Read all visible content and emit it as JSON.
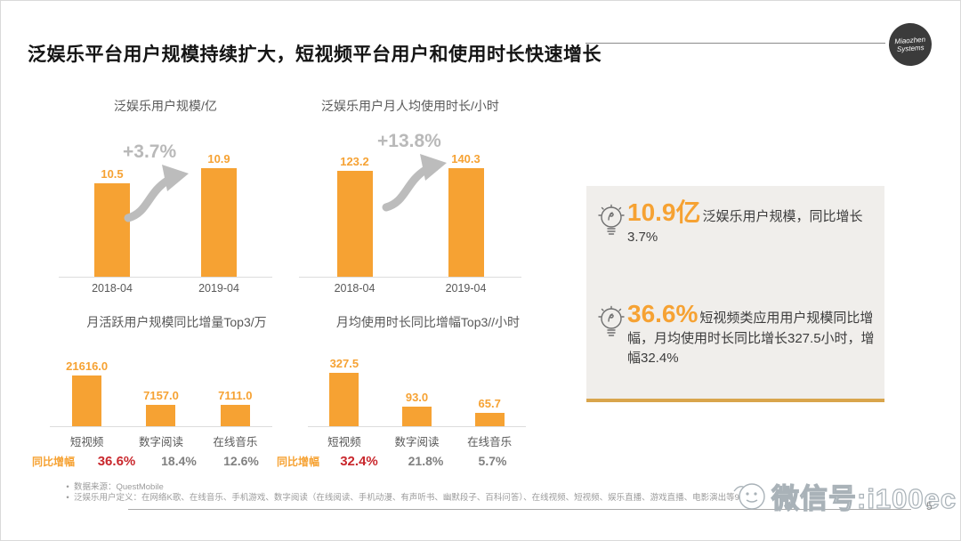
{
  "header": {
    "title": "泛娱乐平台用户规模持续扩大，短视频平台用户和使用时长快速增长",
    "logo": {
      "line1": "Miaozhen",
      "line2": "Systems"
    }
  },
  "chart_data": [
    {
      "type": "bar",
      "title": "泛娱乐用户规模/亿",
      "categories": [
        "2018-04",
        "2019-04"
      ],
      "values": [
        10.5,
        10.9
      ],
      "labels": [
        "10.5",
        "10.9"
      ],
      "growth_annotation": "+3.7%",
      "xlabel": "",
      "ylabel": "",
      "ylim": [
        9,
        11
      ],
      "grid": false,
      "legend": "none"
    },
    {
      "type": "bar",
      "title": "泛娱乐用户月人均使用时长/小时",
      "categories": [
        "2018-04",
        "2019-04"
      ],
      "values": [
        123.2,
        140.3
      ],
      "labels": [
        "123.2",
        "140.3"
      ],
      "growth_annotation": "+13.8%",
      "xlabel": "",
      "ylabel": "",
      "ylim": [
        0,
        145
      ],
      "grid": false,
      "legend": "none"
    },
    {
      "type": "bar",
      "title": "月活跃用户规模同比增量Top3/万",
      "categories": [
        "短视频",
        "数字阅读",
        "在线音乐"
      ],
      "values": [
        21616.0,
        7157.0,
        7111.0
      ],
      "labels": [
        "21616.0",
        "7157.0",
        "7111.0"
      ],
      "xlabel": "",
      "ylabel": "",
      "ylim": [
        0,
        22000
      ],
      "grid": false,
      "legend": "none",
      "growth_row": {
        "label": "同比增幅",
        "values": [
          "36.6%",
          "18.4%",
          "12.6%"
        ]
      }
    },
    {
      "type": "bar",
      "title": "月均使用时长同比增幅Top3//小时",
      "categories": [
        "短视频",
        "数字阅读",
        "在线音乐"
      ],
      "values": [
        327.5,
        93.0,
        65.7
      ],
      "labels": [
        "327.5",
        "93.0",
        "65.7"
      ],
      "xlabel": "",
      "ylabel": "",
      "ylim": [
        0,
        335
      ],
      "grid": false,
      "legend": "none",
      "growth_row": {
        "label": "同比增幅",
        "values": [
          "32.4%",
          "21.8%",
          "5.7%"
        ]
      }
    }
  ],
  "insights": {
    "items": [
      {
        "highlight": "10.9亿",
        "text": "泛娱乐用户规模，同比增长3.7%"
      },
      {
        "highlight": "36.6%",
        "text": "短视频类应用用户规模同比增幅，月均使用时长同比增长327.5小时，增幅32.4%"
      }
    ]
  },
  "footer": {
    "notes": [
      "数据来源：QuestMobile",
      "泛娱乐用户定义：在网络K歌、在线音乐、手机游戏、数字阅读（在线阅读、手机动漫、有声听书、幽默段子、百科问答）、在线视频、短视频、娱乐直播、游戏直播、电影演出等9个行业"
    ],
    "watermark": "微信号:i100ec",
    "page_number": "5"
  },
  "colors": {
    "orange": "#F6A233",
    "red": "#C9282D",
    "gray_text": "#808080",
    "chart_title": "#595959",
    "arrow": "#B9B9B9",
    "panel_bg": "#F0EEEB",
    "gold": "#D9A54C",
    "logo_bg": "#3B3B3B",
    "axis": "#DCDCDC",
    "footer": "#9B9B9B"
  }
}
